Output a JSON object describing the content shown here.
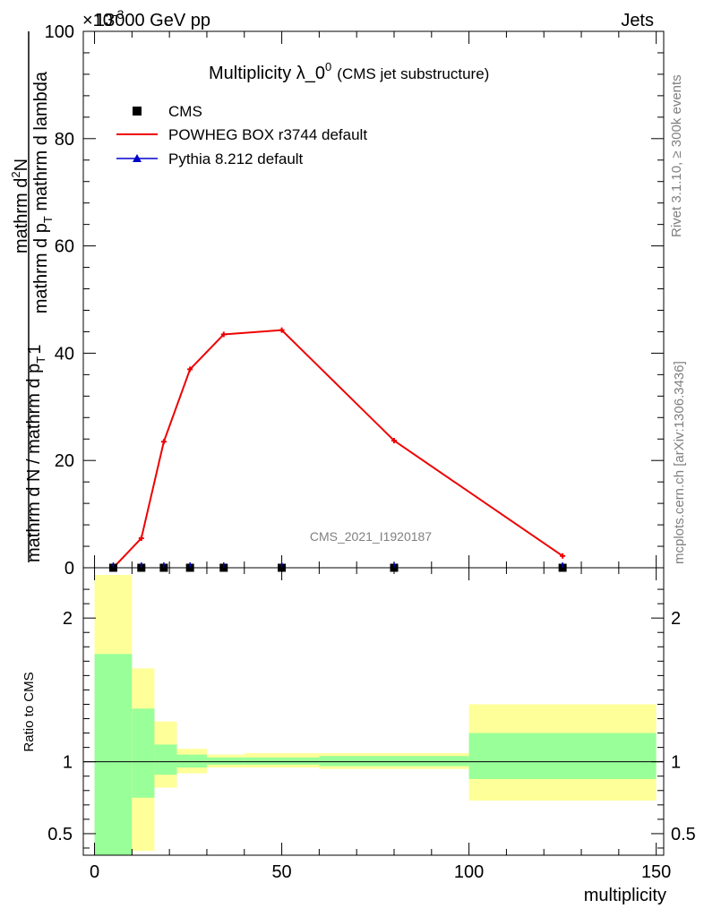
{
  "header": {
    "left": "13000 GeV pp",
    "right": "Jets",
    "exponent": "×10",
    "exponent_power": "-3"
  },
  "side_labels": {
    "top": "Rivet 3.1.10, ≥ 300k events",
    "bottom": "mcplots.cern.ch [arXiv:1306.3436]"
  },
  "watermark": "CMS_2021_I1920187",
  "chart_data": [
    {
      "type": "line",
      "title": "Multiplicity λ_0",
      "title_sup": "0",
      "subtitle": "(CMS jet substructure)",
      "xlabel": "multiplicity",
      "ylabel_num": "mathrm d",
      "ylabel_num2": "N",
      "ylabel_num_sup": "2",
      "ylabel_den": "mathrm d p",
      "ylabel_den_sub": "T",
      "ylabel_den2": " mathrm d lambda",
      "ylabel_prefactor_num": "1",
      "ylabel_prefactor_den": "mathrm d N / mathrm d p",
      "ylabel_prefactor_den_sub": "T",
      "xlim": [
        -3,
        152
      ],
      "ylim": [
        0,
        100
      ],
      "yticks": [
        0,
        20,
        40,
        60,
        80,
        100
      ],
      "legend": [
        {
          "name": "CMS",
          "color": "#000000",
          "marker": "square"
        },
        {
          "name": "POWHEG BOX r3744 default",
          "color": "#ee0000",
          "marker": "line"
        },
        {
          "name": "Pythia 8.212 default",
          "color": "#0000cc",
          "marker": "triangle"
        }
      ],
      "series": [
        {
          "name": "CMS",
          "x": [
            5,
            12.5,
            18.5,
            25.5,
            34.5,
            50,
            80,
            125
          ],
          "values": [
            0,
            0,
            0,
            0,
            0,
            0,
            0,
            0
          ]
        },
        {
          "name": "POWHEG BOX r3744 default",
          "x": [
            5,
            12.5,
            18.5,
            25.5,
            34.5,
            50,
            80,
            125
          ],
          "values": [
            0,
            5.5,
            23.5,
            37,
            43.5,
            44.3,
            23.7,
            2.2
          ]
        }
      ]
    },
    {
      "type": "area",
      "ylabel": "Ratio to CMS",
      "xlim": [
        -3,
        152
      ],
      "ylim": [
        0.35,
        2.35
      ],
      "yticks": [
        0.5,
        1,
        2
      ],
      "xticks": [
        0,
        50,
        100,
        150
      ],
      "reference": 1,
      "bands": [
        {
          "x_low": 0,
          "x_high": 10,
          "yellow": [
            0.35,
            2.3
          ],
          "green": [
            0.35,
            1.75
          ]
        },
        {
          "x_low": 10,
          "x_high": 16,
          "yellow": [
            0.38,
            1.65
          ],
          "green": [
            0.75,
            1.37
          ]
        },
        {
          "x_low": 16,
          "x_high": 22,
          "yellow": [
            0.82,
            1.28
          ],
          "green": [
            0.91,
            1.12
          ]
        },
        {
          "x_low": 22,
          "x_high": 30,
          "yellow": [
            0.92,
            1.09
          ],
          "green": [
            0.96,
            1.05
          ]
        },
        {
          "x_low": 30,
          "x_high": 40,
          "yellow": [
            0.96,
            1.05
          ],
          "green": [
            0.98,
            1.03
          ]
        },
        {
          "x_low": 40,
          "x_high": 60,
          "yellow": [
            0.96,
            1.06
          ],
          "green": [
            0.98,
            1.03
          ]
        },
        {
          "x_low": 60,
          "x_high": 100,
          "yellow": [
            0.95,
            1.06
          ],
          "green": [
            0.97,
            1.04
          ]
        },
        {
          "x_low": 100,
          "x_high": 150,
          "yellow": [
            0.73,
            1.4
          ],
          "green": [
            0.88,
            1.2
          ]
        }
      ],
      "colors": {
        "yellow": "#ffff99",
        "green": "#99ff99"
      }
    }
  ]
}
